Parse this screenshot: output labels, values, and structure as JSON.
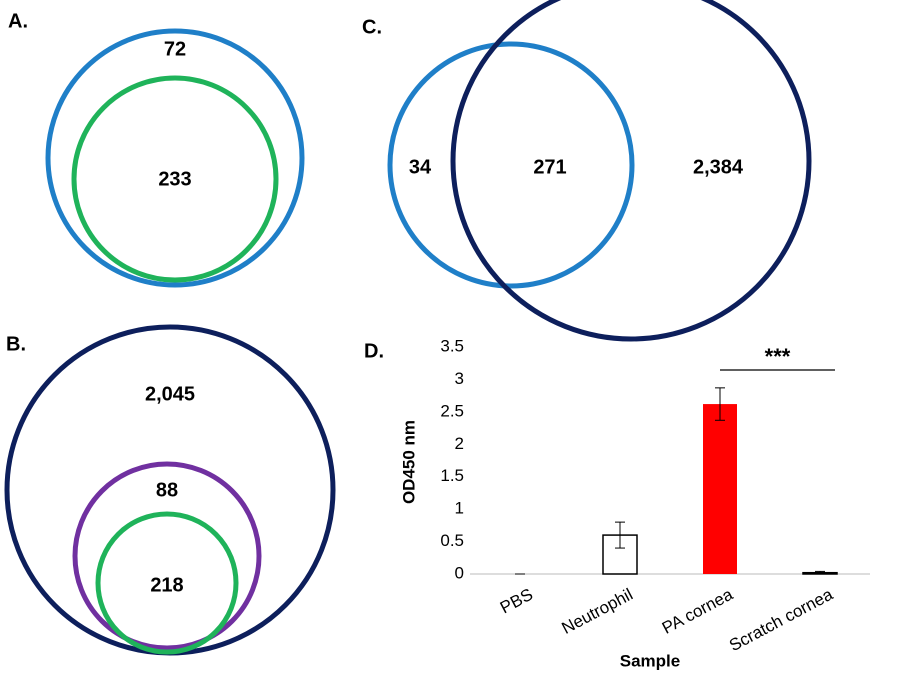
{
  "panel_a": {
    "label": "A.",
    "counts": [
      "72",
      "233"
    ]
  },
  "panel_b": {
    "label": "B.",
    "counts": [
      "2,045",
      "88",
      "218"
    ]
  },
  "panel_c": {
    "label": "C.",
    "counts": [
      "34",
      "271",
      "2,384"
    ]
  },
  "chart_data": {
    "type": "bar",
    "panel_label": "D.",
    "categories": [
      "PBS",
      "Neutrophil",
      "PA cornea",
      "Scratch cornea"
    ],
    "values": [
      0,
      0.6,
      2.62,
      0.02
    ],
    "errors": [
      0,
      0.2,
      0.25,
      0.02
    ],
    "colors": [
      "#ffffff",
      "#ffffff",
      "#ff0000",
      "#ffffff"
    ],
    "ylim": [
      0,
      3.5
    ],
    "yticks": [
      0,
      0.5,
      1,
      1.5,
      2,
      2.5,
      3,
      3.5
    ],
    "xlabel": "Sample",
    "ylabel": "OD450 nm",
    "annotation": "***",
    "grid": false
  }
}
